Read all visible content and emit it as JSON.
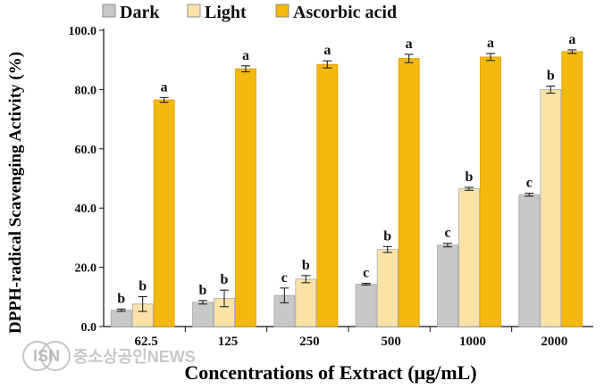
{
  "chart_data": {
    "type": "bar",
    "title": "",
    "xlabel": "Concentrations of Extract (µg/mL)",
    "ylabel": "DPPH-radical Scavenging Activity (%)",
    "categories": [
      "62.5",
      "125",
      "250",
      "500",
      "1000",
      "2000"
    ],
    "ylim": [
      0,
      100
    ],
    "yticks": [
      "0.0",
      "20.0",
      "40.0",
      "60.0",
      "80.0",
      "100.0"
    ],
    "grid": false,
    "legend_position": "top",
    "series": [
      {
        "name": "Dark",
        "color": "#c8c8c8",
        "values": [
          5.5,
          8.2,
          10.5,
          14.3,
          27.5,
          44.5
        ],
        "errors": [
          0.4,
          0.6,
          2.5,
          0.3,
          0.6,
          0.5
        ],
        "labels": [
          "b",
          "b",
          "c",
          "c",
          "c",
          "c"
        ]
      },
      {
        "name": "Light",
        "color": "#fbe3a8",
        "values": [
          7.6,
          9.5,
          16.0,
          26.0,
          46.5,
          80.0
        ],
        "errors": [
          2.5,
          2.8,
          1.2,
          1.0,
          0.5,
          1.2
        ],
        "labels": [
          "b",
          "b",
          "b",
          "b",
          "b",
          "b"
        ]
      },
      {
        "name": "Ascorbic acid",
        "color": "#f4b90e",
        "values": [
          76.5,
          87.0,
          88.5,
          90.5,
          91.0,
          92.8
        ],
        "errors": [
          0.8,
          1.0,
          1.2,
          1.4,
          1.2,
          0.6
        ],
        "labels": [
          "a",
          "a",
          "a",
          "a",
          "a",
          "a"
        ]
      }
    ]
  },
  "watermark": {
    "logo_text": "ISN",
    "text": "중소상공인NEWS"
  }
}
